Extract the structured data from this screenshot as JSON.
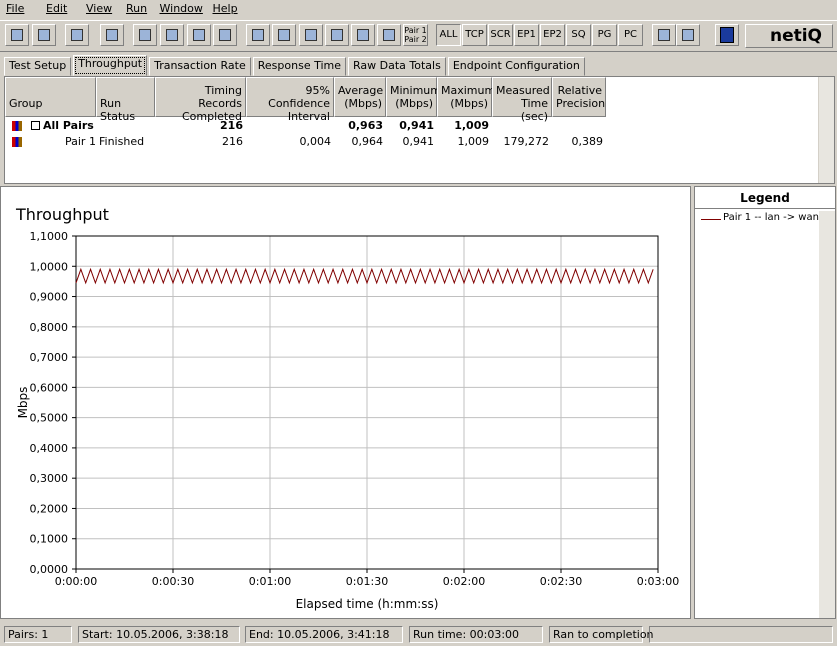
{
  "menu": [
    "File",
    "Edit",
    "View",
    "Run",
    "Window",
    "Help"
  ],
  "toolbar": {
    "buttons": [
      "ALL",
      "TCP",
      "SCR",
      "EP1",
      "EP2",
      "SQ",
      "PG",
      "PC"
    ],
    "pair_button": [
      "Pair 1",
      "Pair 2"
    ],
    "logo": "netiQ"
  },
  "tabs": [
    "Test Setup",
    "Throughput",
    "Transaction Rate",
    "Response Time",
    "Raw Data Totals",
    "Endpoint Configuration"
  ],
  "table": {
    "columns": [
      "Group",
      "Run Status",
      "Timing Records Completed",
      "95% Confidence Interval",
      "Average (Mbps)",
      "Minimum (Mbps)",
      "Maximum (Mbps)",
      "Measured Time (sec)",
      "Relative Precision"
    ],
    "rows": [
      [
        "All Pairs",
        null,
        "216",
        null,
        "0,963",
        "0,941",
        "1,009",
        null,
        null
      ],
      [
        "Pair 1",
        "Finished",
        "216",
        "0,004",
        "0,964",
        "0,941",
        "1,009",
        "179,272",
        "0,389"
      ]
    ]
  },
  "chart_data": {
    "type": "line",
    "title": "Throughput",
    "x_label": "Elapsed time (h:mm:ss)",
    "y_label": "Mbps",
    "legend_title": "Legend",
    "grid": true,
    "x": [
      0,
      1.5,
      3,
      4.5,
      6,
      7.5,
      9,
      10.5,
      12,
      13.5,
      15,
      16.5,
      18,
      19.5,
      21,
      22.5,
      24,
      25.5,
      27,
      28.5,
      30,
      31.5,
      33,
      34.5,
      36,
      37.5,
      39,
      40.5,
      42,
      43.5,
      45,
      46.5,
      48,
      49.5,
      51,
      52.5,
      54,
      55.5,
      57,
      58.5,
      60,
      61.5,
      63,
      64.5,
      66,
      67.5,
      69,
      70.5,
      72,
      73.5,
      75,
      76.5,
      78,
      79.5,
      81,
      82.5,
      84,
      85.5,
      87,
      88.5,
      90,
      91.5,
      93,
      94.5,
      96,
      97.5,
      99,
      100.5,
      102,
      103.5,
      105,
      106.5,
      108,
      109.5,
      111,
      112.5,
      114,
      115.5,
      117,
      118.5,
      120,
      121.5,
      123,
      124.5,
      126,
      127.5,
      129,
      130.5,
      132,
      133.5,
      135,
      136.5,
      138,
      139.5,
      141,
      142.5,
      144,
      145.5,
      147,
      148.5,
      150,
      151.5,
      153,
      154.5,
      156,
      157.5,
      159,
      160.5,
      162,
      163.5,
      165,
      166.5,
      168,
      169.5,
      171,
      172.5,
      174,
      175.5,
      177,
      178.5
    ],
    "series": [
      {
        "name": "Pair 1 -- lan -> wan",
        "color": "#800000",
        "values": [
          0.945,
          0.99,
          0.945,
          0.99,
          0.945,
          0.99,
          0.945,
          0.99,
          0.945,
          0.99,
          0.945,
          0.99,
          0.945,
          0.99,
          0.945,
          0.99,
          0.945,
          0.99,
          0.945,
          0.99,
          0.945,
          0.99,
          0.945,
          0.99,
          0.945,
          0.99,
          0.945,
          0.99,
          0.945,
          0.99,
          0.945,
          0.99,
          0.945,
          0.99,
          0.945,
          0.99,
          0.945,
          0.99,
          0.945,
          0.99,
          0.945,
          0.99,
          0.945,
          0.99,
          0.945,
          0.99,
          0.945,
          0.99,
          0.945,
          0.99,
          0.945,
          0.99,
          0.945,
          0.99,
          0.945,
          0.99,
          0.945,
          0.99,
          0.945,
          0.99,
          0.945,
          0.99,
          0.945,
          0.99,
          0.945,
          0.99,
          0.945,
          0.99,
          0.945,
          0.99,
          0.945,
          0.99,
          0.945,
          0.99,
          0.945,
          0.99,
          0.945,
          0.99,
          0.945,
          0.99,
          0.945,
          0.99,
          0.945,
          0.99,
          0.945,
          0.99,
          0.945,
          0.99,
          0.945,
          0.99,
          0.945,
          0.99,
          0.945,
          0.99,
          0.945,
          0.99,
          0.945,
          0.99,
          0.945,
          0.99,
          0.945,
          0.99,
          0.945,
          0.99,
          0.945,
          0.99,
          0.945,
          0.99,
          0.945,
          0.99,
          0.945,
          0.99,
          0.945,
          0.99,
          0.945,
          0.99,
          0.945,
          0.99,
          0.945,
          0.99
        ]
      }
    ],
    "xlim": [
      0,
      180
    ],
    "xticks": [
      {
        "value": 0,
        "label": "0:00:00"
      },
      {
        "value": 30,
        "label": "0:00:30"
      },
      {
        "value": 60,
        "label": "0:01:00"
      },
      {
        "value": 90,
        "label": "0:01:30"
      },
      {
        "value": 120,
        "label": "0:02:00"
      },
      {
        "value": 150,
        "label": "0:02:30"
      },
      {
        "value": 180,
        "label": "0:03:00"
      }
    ],
    "ylim": [
      0,
      1.1
    ],
    "yticks": [
      {
        "value": 0,
        "label": "0,0000"
      },
      {
        "value": 0.1,
        "label": "0,1000"
      },
      {
        "value": 0.2,
        "label": "0,2000"
      },
      {
        "value": 0.3,
        "label": "0,3000"
      },
      {
        "value": 0.4,
        "label": "0,4000"
      },
      {
        "value": 0.5,
        "label": "0,5000"
      },
      {
        "value": 0.6,
        "label": "0,6000"
      },
      {
        "value": 0.7,
        "label": "0,7000"
      },
      {
        "value": 0.8,
        "label": "0,8000"
      },
      {
        "value": 0.9,
        "label": "0,9000"
      },
      {
        "value": 1.0,
        "label": "1,0000"
      },
      {
        "value": 1.1,
        "label": "1,1000"
      }
    ]
  },
  "status_bar": [
    "Pairs: 1",
    "Start: 10.05.2006, 3:38:18",
    "End: 10.05.2006, 3:41:18",
    "Run time: 00:03:00",
    "Ran to completion"
  ]
}
